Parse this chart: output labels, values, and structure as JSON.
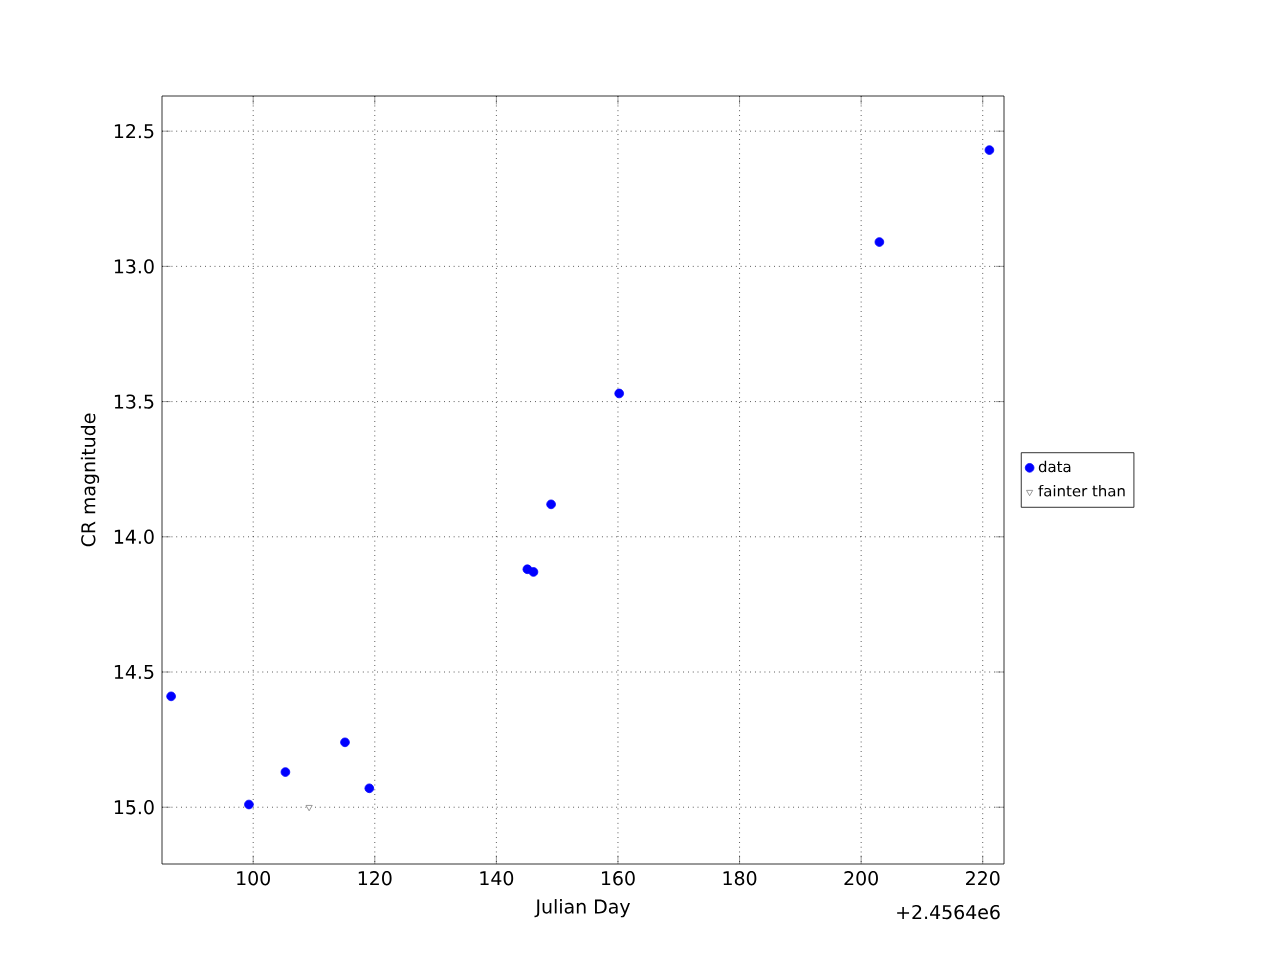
{
  "chart_data": {
    "type": "scatter",
    "xlabel": "Julian Day",
    "ylabel": "CR magnitude",
    "series": [
      {
        "name": "data",
        "color": "#0000ff",
        "marker": "circle",
        "x": [
          86.5,
          99.3,
          105.3,
          115.1,
          119.1,
          145.1,
          146.1,
          149.0,
          160.2,
          203.0,
          221.1
        ],
        "values": [
          14.59,
          14.99,
          14.87,
          14.76,
          14.93,
          14.12,
          14.13,
          13.88,
          13.47,
          12.91,
          12.57
        ]
      },
      {
        "name": "fainter than",
        "color": "#808080",
        "marker": "triangle",
        "x": [
          109.2
        ],
        "values": [
          15.0
        ]
      }
    ],
    "xlim": [
      85,
      223.5
    ],
    "ylim": [
      15.21,
      12.37
    ],
    "xticks": [
      100,
      120,
      140,
      160,
      180,
      200,
      220
    ],
    "yticks": [
      12.5,
      {
        "value": 13,
        "label": "13.0"
      },
      13.5,
      {
        "value": 14,
        "label": "14.0"
      },
      14.5,
      {
        "value": 15,
        "label": "15.0"
      }
    ],
    "annotations": [
      "+2.4564e6"
    ],
    "grid": true,
    "legend": "right"
  }
}
